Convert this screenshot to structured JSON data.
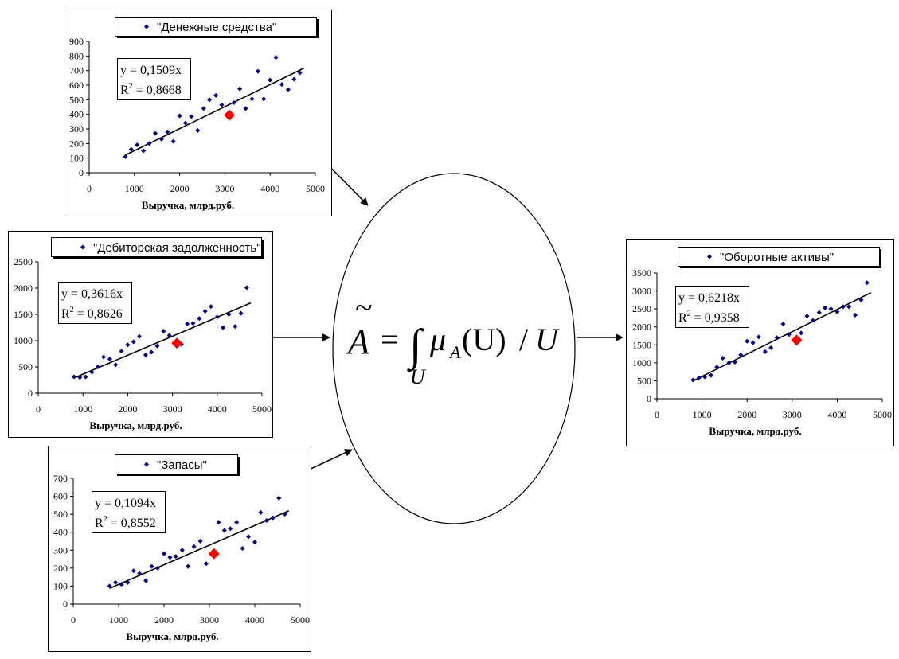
{
  "colors": {
    "point": "#000080",
    "special": "#ff0000",
    "line": "#000000"
  },
  "formula": {
    "tilde": "~",
    "lhs": "A",
    "eq": "=",
    "integral": "∫",
    "mu": "μ",
    "sub": "A",
    "arg": "(U)",
    "slash": "/",
    "rhs": "U",
    "lower": "U"
  },
  "chart_data": [
    {
      "type": "scatter",
      "legend": "\"Денежные средства\"",
      "xlabel": "Выручка, млрд.руб.",
      "ylabel": "",
      "xlim": [
        0,
        5000
      ],
      "ylim": [
        0,
        900
      ],
      "x_ticks": [
        0,
        1000,
        2000,
        3000,
        4000,
        5000
      ],
      "y_ticks": [
        0,
        100,
        200,
        300,
        400,
        500,
        600,
        700,
        800,
        900
      ],
      "equation": "y = 0,1509x",
      "r2_label": "R",
      "r2_sup": "2",
      "r2_value": " = 0,8668",
      "slope": 0.1509,
      "trend_x": [
        800,
        4750
      ],
      "special_point": {
        "x": 3100,
        "y": 395
      },
      "points": [
        [
          800,
          110
        ],
        [
          930,
          160
        ],
        [
          1060,
          190
        ],
        [
          1200,
          150
        ],
        [
          1330,
          200
        ],
        [
          1460,
          270
        ],
        [
          1600,
          230
        ],
        [
          1730,
          280
        ],
        [
          1860,
          215
        ],
        [
          2000,
          390
        ],
        [
          2130,
          340
        ],
        [
          2260,
          385
        ],
        [
          2400,
          290
        ],
        [
          2530,
          440
        ],
        [
          2660,
          500
        ],
        [
          2800,
          530
        ],
        [
          2930,
          465
        ],
        [
          3200,
          480
        ],
        [
          3330,
          575
        ],
        [
          3460,
          440
        ],
        [
          3600,
          505
        ],
        [
          3730,
          695
        ],
        [
          3860,
          505
        ],
        [
          4000,
          635
        ],
        [
          4130,
          790
        ],
        [
          4260,
          605
        ],
        [
          4400,
          570
        ],
        [
          4530,
          640
        ],
        [
          4660,
          685
        ]
      ]
    },
    {
      "type": "scatter",
      "legend": "\"Дебиторская задолженность\"",
      "xlabel": "Выручка, млрд.руб.",
      "ylabel": "",
      "xlim": [
        0,
        5000
      ],
      "ylim": [
        0,
        2500
      ],
      "x_ticks": [
        0,
        1000,
        2000,
        3000,
        4000,
        5000
      ],
      "y_ticks": [
        0,
        500,
        1000,
        1500,
        2000,
        2500
      ],
      "equation": "y = 0,3616x",
      "r2_label": "R",
      "r2_sup": "2",
      "r2_value": " = 0,8626",
      "slope": 0.3616,
      "trend_x": [
        800,
        4750
      ],
      "special_point": {
        "x": 3100,
        "y": 950
      },
      "points": [
        [
          800,
          310
        ],
        [
          930,
          300
        ],
        [
          1060,
          310
        ],
        [
          1200,
          400
        ],
        [
          1330,
          500
        ],
        [
          1460,
          690
        ],
        [
          1600,
          650
        ],
        [
          1730,
          540
        ],
        [
          1860,
          800
        ],
        [
          2000,
          920
        ],
        [
          2130,
          980
        ],
        [
          2260,
          1080
        ],
        [
          2400,
          730
        ],
        [
          2530,
          780
        ],
        [
          2660,
          900
        ],
        [
          2800,
          1180
        ],
        [
          2930,
          1100
        ],
        [
          3200,
          930
        ],
        [
          3330,
          1320
        ],
        [
          3460,
          1330
        ],
        [
          3600,
          1420
        ],
        [
          3730,
          1560
        ],
        [
          3860,
          1650
        ],
        [
          4000,
          1450
        ],
        [
          4130,
          1250
        ],
        [
          4260,
          1500
        ],
        [
          4400,
          1270
        ],
        [
          4530,
          1520
        ],
        [
          4660,
          2010
        ]
      ]
    },
    {
      "type": "scatter",
      "legend": "\"Запасы\"",
      "xlabel": "Выручка, млрд.руб.",
      "ylabel": "",
      "xlim": [
        0,
        5000
      ],
      "ylim": [
        0,
        700
      ],
      "x_ticks": [
        0,
        1000,
        2000,
        3000,
        4000,
        5000
      ],
      "y_ticks": [
        0,
        100,
        200,
        300,
        400,
        500,
        600,
        700
      ],
      "equation": "y = 0,1094x",
      "r2_label": "R",
      "r2_sup": "2",
      "r2_value": " = 0,8552",
      "slope": 0.1094,
      "trend_x": [
        800,
        4750
      ],
      "special_point": {
        "x": 3100,
        "y": 280
      },
      "points": [
        [
          800,
          100
        ],
        [
          930,
          120
        ],
        [
          1060,
          110
        ],
        [
          1200,
          120
        ],
        [
          1330,
          185
        ],
        [
          1460,
          170
        ],
        [
          1600,
          130
        ],
        [
          1730,
          210
        ],
        [
          1860,
          200
        ],
        [
          2000,
          280
        ],
        [
          2130,
          260
        ],
        [
          2260,
          265
        ],
        [
          2400,
          300
        ],
        [
          2530,
          210
        ],
        [
          2660,
          320
        ],
        [
          2800,
          350
        ],
        [
          2930,
          225
        ],
        [
          3200,
          455
        ],
        [
          3330,
          410
        ],
        [
          3460,
          420
        ],
        [
          3600,
          455
        ],
        [
          3730,
          310
        ],
        [
          3860,
          375
        ],
        [
          4000,
          345
        ],
        [
          4130,
          510
        ],
        [
          4260,
          465
        ],
        [
          4400,
          480
        ],
        [
          4530,
          590
        ],
        [
          4660,
          500
        ]
      ]
    },
    {
      "type": "scatter",
      "legend": "\"Оборотные активы\"",
      "xlabel": "Выручка, млрд.руб.",
      "ylabel": "",
      "xlim": [
        0,
        5000
      ],
      "ylim": [
        0,
        3500
      ],
      "x_ticks": [
        0,
        1000,
        2000,
        3000,
        4000,
        5000
      ],
      "y_ticks": [
        0,
        500,
        1000,
        1500,
        2000,
        2500,
        3000,
        3500
      ],
      "equation": "y = 0,6218x",
      "r2_label": "R",
      "r2_sup": "2",
      "r2_value": " = 0,9358",
      "slope": 0.6218,
      "trend_x": [
        800,
        4750
      ],
      "special_point": {
        "x": 3100,
        "y": 1630
      },
      "points": [
        [
          800,
          520
        ],
        [
          930,
          580
        ],
        [
          1060,
          610
        ],
        [
          1200,
          650
        ],
        [
          1330,
          880
        ],
        [
          1460,
          1130
        ],
        [
          1600,
          1000
        ],
        [
          1730,
          1020
        ],
        [
          1860,
          1220
        ],
        [
          2000,
          1600
        ],
        [
          2130,
          1560
        ],
        [
          2260,
          1720
        ],
        [
          2400,
          1310
        ],
        [
          2530,
          1420
        ],
        [
          2660,
          1700
        ],
        [
          2800,
          2080
        ],
        [
          2930,
          1790
        ],
        [
          3200,
          1830
        ],
        [
          3330,
          2300
        ],
        [
          3460,
          2180
        ],
        [
          3600,
          2400
        ],
        [
          3730,
          2530
        ],
        [
          3860,
          2500
        ],
        [
          4000,
          2420
        ],
        [
          4130,
          2560
        ],
        [
          4260,
          2560
        ],
        [
          4400,
          2330
        ],
        [
          4530,
          2750
        ],
        [
          4660,
          3230
        ]
      ]
    }
  ]
}
